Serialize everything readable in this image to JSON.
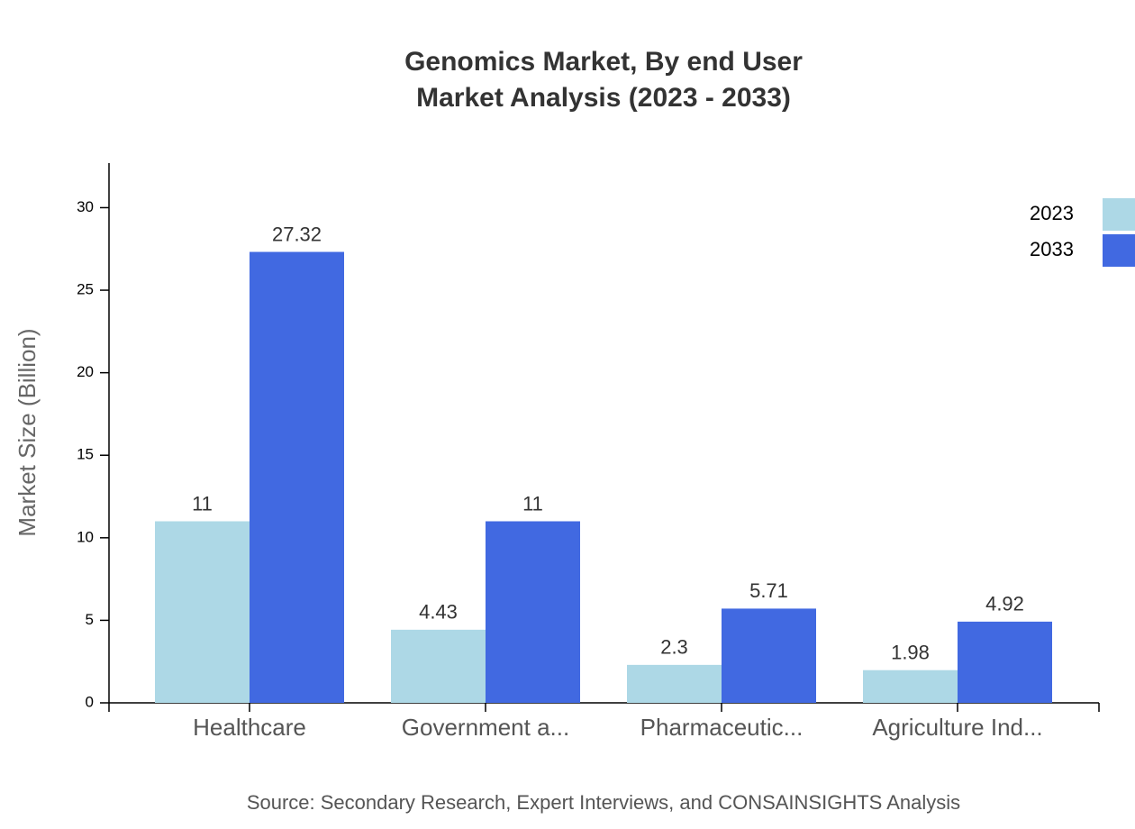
{
  "chart_data": {
    "type": "bar",
    "title": "Genomics Market, By end User",
    "subtitle": "Market Analysis (2023 - 2033)",
    "y_label": "Market Size (Billion)",
    "source": "Source: Secondary Research, Expert Interviews, and CONSAINSIGHTS Analysis",
    "categories": [
      "Healthcare",
      "Government a...",
      "Pharmaceutic...",
      "Agriculture Ind..."
    ],
    "series": [
      {
        "name": "2023",
        "color": "#add8e6",
        "values": [
          11,
          4.43,
          2.3,
          1.98
        ]
      },
      {
        "name": "2033",
        "color": "#4169e1",
        "values": [
          27.32,
          11,
          5.71,
          4.92
        ]
      }
    ],
    "ylim": [
      0,
      32.7
    ],
    "yticks": [
      0,
      5,
      10,
      15,
      20,
      25,
      30
    ],
    "legend": "top-right"
  }
}
